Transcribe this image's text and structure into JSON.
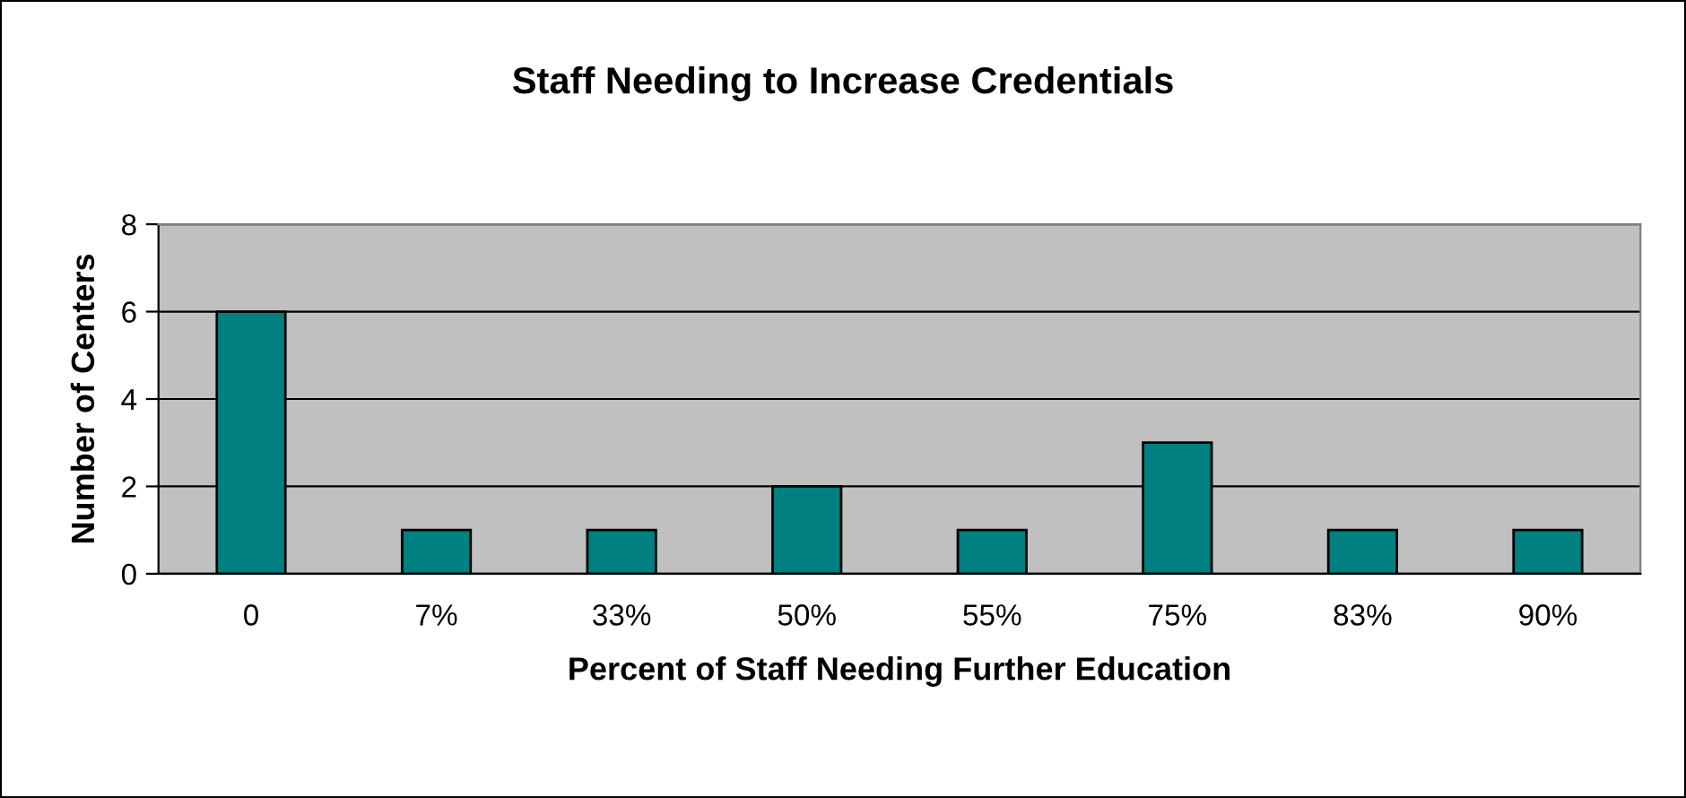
{
  "chart_data": {
    "type": "bar",
    "title": "Staff Needing to Increase Credentials",
    "xlabel": "Percent of Staff Needing Further Education",
    "ylabel": "Number of Centers",
    "categories": [
      "0",
      "7%",
      "33%",
      "50%",
      "55%",
      "75%",
      "83%",
      "90%"
    ],
    "values": [
      6,
      1,
      1,
      2,
      1,
      3,
      1,
      1
    ],
    "color": "#008080",
    "ylim": [
      0,
      8
    ],
    "yticks": [
      0,
      2,
      4,
      6,
      8
    ],
    "grid": "y",
    "legend": false
  }
}
